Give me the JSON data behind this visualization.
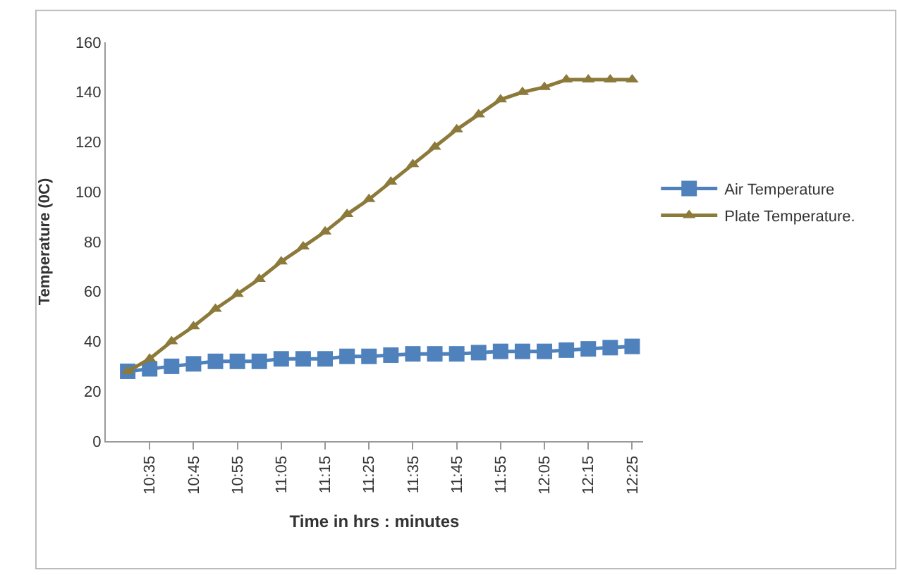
{
  "chart_data": {
    "type": "line",
    "xlabel": "Time in hrs : minutes",
    "ylabel": "Temperature (0C)",
    "categories": [
      null,
      "10:35",
      null,
      "10:45",
      null,
      "10:55",
      null,
      "11:05",
      null,
      "11:15",
      null,
      "11:25",
      null,
      "11:35",
      null,
      "11:45",
      null,
      "11:55",
      null,
      "12:05",
      null,
      "12:15",
      null,
      "12:25"
    ],
    "series": [
      {
        "name": "Air Temperature",
        "color": "#4f81bd",
        "marker": "square",
        "values": [
          28,
          29,
          30,
          31,
          32,
          32,
          32,
          33,
          33,
          33,
          34,
          34,
          34.5,
          35,
          35,
          35,
          35.5,
          36,
          36,
          36,
          36.5,
          37,
          37.5,
          38
        ]
      },
      {
        "name": "Plate Temperature.",
        "color": "#8c7a3a",
        "marker": "triangle",
        "values": [
          28,
          33,
          40,
          46,
          53,
          59,
          65,
          72,
          78,
          84,
          91,
          97,
          104,
          111,
          118,
          125,
          131,
          137,
          140,
          142,
          145,
          145,
          145,
          145
        ]
      }
    ],
    "ylim": [
      0,
      160
    ],
    "yticks": [
      0,
      20,
      40,
      60,
      80,
      100,
      120,
      140,
      160
    ],
    "legend": "right"
  }
}
